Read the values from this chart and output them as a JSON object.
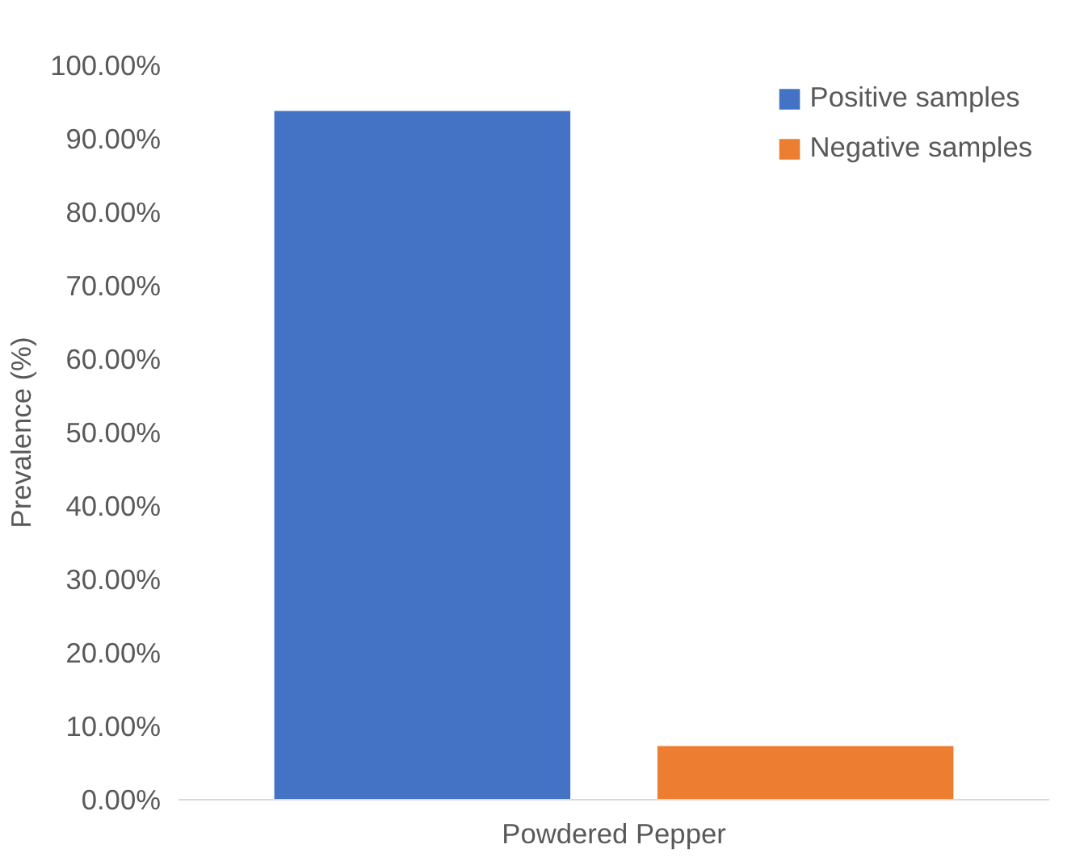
{
  "chart_data": {
    "type": "bar",
    "ylabel": "Prevalence (%)",
    "categories": [
      "Powdered Pepper"
    ],
    "series": [
      {
        "name": "Positive samples",
        "color": "#4472c4",
        "values": [
          93.8
        ]
      },
      {
        "name": "Negative samples",
        "color": "#ed7d31",
        "values": [
          7.3
        ]
      }
    ],
    "ylim": [
      0,
      100
    ],
    "yticks": [
      {
        "value": 0,
        "label": "0.00%"
      },
      {
        "value": 10,
        "label": "10.00%"
      },
      {
        "value": 20,
        "label": "20.00%"
      },
      {
        "value": 30,
        "label": "30.00%"
      },
      {
        "value": 40,
        "label": "40.00%"
      },
      {
        "value": 50,
        "label": "50.00%"
      },
      {
        "value": 60,
        "label": "60.00%"
      },
      {
        "value": 70,
        "label": "70.00%"
      },
      {
        "value": 80,
        "label": "80.00%"
      },
      {
        "value": 90,
        "label": "90.00%"
      },
      {
        "value": 100,
        "label": "100.00%"
      }
    ],
    "grid": false,
    "legend": "top right"
  }
}
